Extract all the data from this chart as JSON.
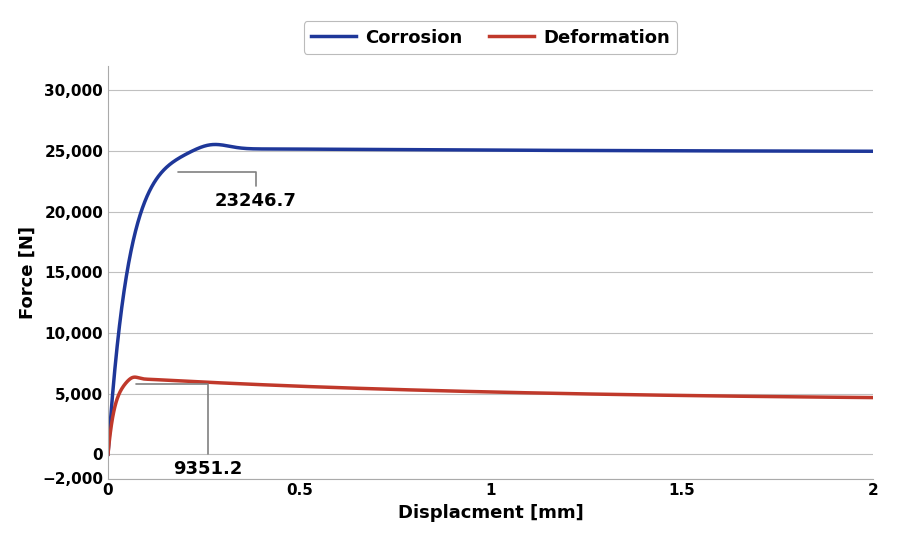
{
  "title": "",
  "xlabel": "Displacment [mm]",
  "ylabel": "Force [N]",
  "xlim": [
    0,
    2
  ],
  "ylim": [
    -2000,
    32000
  ],
  "yticks": [
    -2000,
    0,
    5000,
    10000,
    15000,
    20000,
    25000,
    30000
  ],
  "xticks": [
    0,
    0.5,
    1.0,
    1.5,
    2.0
  ],
  "corrosion_color": "#1e3799",
  "deformation_color": "#c0392b",
  "annotation_corrosion": "23246.7",
  "annotation_deformation": "9351.2",
  "legend_labels": [
    "Corrosion",
    "Deformation"
  ],
  "background_color": "#ffffff",
  "grid_color": "#c0c0c0",
  "legend_border_color": "#aaaaaa"
}
